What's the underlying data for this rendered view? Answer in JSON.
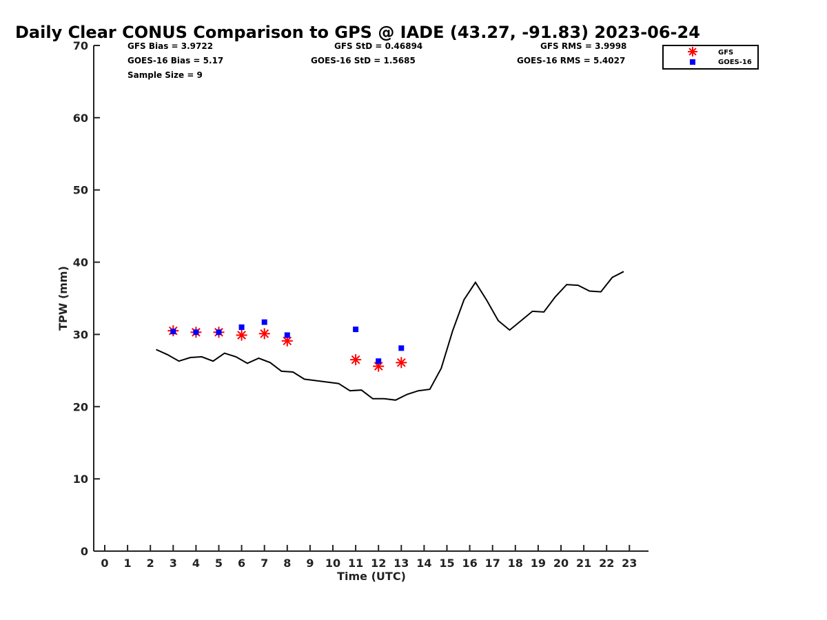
{
  "chart_data": {
    "type": "line",
    "title": "Daily Clear CONUS Comparison to GPS @ IADE (43.27, -91.83) 2023-06-24",
    "xlabel": "Time (UTC)",
    "ylabel": "TPW (mm)",
    "xlim": [
      -0.5,
      23.8
    ],
    "ylim": [
      0,
      70
    ],
    "x_ticks": [
      0,
      1,
      2,
      3,
      4,
      5,
      6,
      7,
      8,
      9,
      10,
      11,
      12,
      13,
      14,
      15,
      16,
      17,
      18,
      19,
      20,
      21,
      22,
      23
    ],
    "y_ticks": [
      0,
      10,
      20,
      30,
      40,
      50,
      60,
      70
    ],
    "grid": false,
    "legend_position": "top-right",
    "stats": {
      "gfs_bias": "GFS Bias = 3.9722",
      "goes_bias": "GOES-16 Bias = 5.17",
      "sample_size": "Sample Size = 9",
      "gfs_std": "GFS StD = 0.46894",
      "goes_std": "GOES-16 StD = 1.5685",
      "gfs_rms": "GFS RMS = 3.9998",
      "goes_rms": "GOES-16 RMS = 5.4027"
    },
    "series": [
      {
        "name": "GPS",
        "style": "line",
        "color": "#000000",
        "x": [
          2.25,
          2.75,
          3.25,
          3.75,
          4.25,
          4.75,
          5.25,
          5.75,
          6.25,
          6.75,
          7.25,
          7.75,
          8.25,
          8.75,
          9.25,
          9.75,
          10.25,
          10.75,
          11.25,
          11.75,
          12.25,
          12.75,
          13.25,
          13.75,
          14.25,
          14.75,
          15.25,
          15.75,
          16.25,
          16.75,
          17.25,
          17.75,
          18.25,
          18.75,
          19.25,
          19.75,
          20.25,
          20.75,
          21.25,
          21.75,
          22.25,
          22.75
        ],
        "y": [
          27.9,
          27.2,
          26.3,
          26.8,
          26.9,
          26.3,
          27.4,
          26.9,
          26.0,
          26.7,
          26.1,
          24.9,
          24.8,
          23.8,
          23.6,
          23.4,
          23.2,
          22.2,
          22.3,
          21.1,
          21.1,
          20.9,
          21.7,
          22.2,
          22.4,
          25.3,
          30.5,
          34.8,
          37.2,
          34.7,
          31.9,
          30.6,
          31.9,
          33.2,
          33.1,
          35.2,
          36.9,
          36.8,
          36.0,
          35.9,
          37.9,
          38.7
        ]
      },
      {
        "name": "GFS",
        "style": "asterisk",
        "color": "#ff0000",
        "x": [
          3,
          4,
          5,
          6,
          7,
          8,
          11,
          12,
          13
        ],
        "y": [
          30.5,
          30.3,
          30.3,
          29.9,
          30.1,
          29.1,
          26.5,
          25.6,
          26.1
        ]
      },
      {
        "name": "GOES-16",
        "style": "square",
        "color": "#0000ff",
        "x": [
          3,
          4,
          5,
          6,
          7,
          8,
          11,
          12,
          13
        ],
        "y": [
          30.4,
          30.3,
          30.3,
          31.0,
          31.7,
          29.9,
          30.7,
          26.3,
          28.1
        ]
      }
    ],
    "legend": [
      "GFS",
      "GOES-16"
    ]
  }
}
